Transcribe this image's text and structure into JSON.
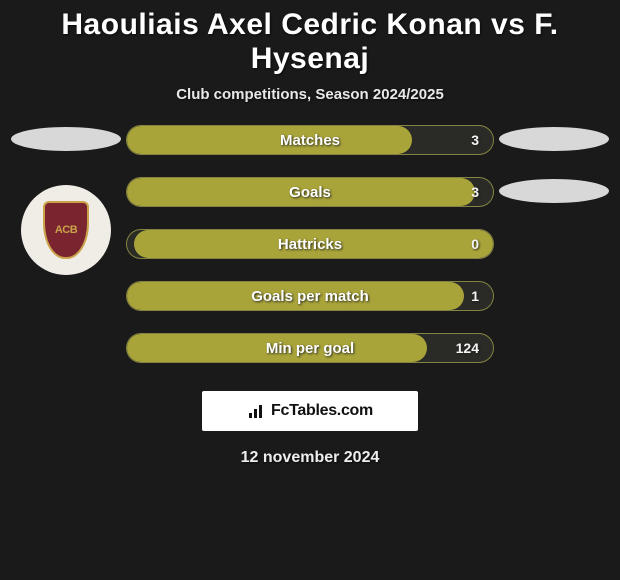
{
  "header": {
    "title": "Haouliais Axel Cedric Konan vs F. Hysenaj",
    "subtitle": "Club competitions, Season 2024/2025"
  },
  "players": {
    "left": {
      "flag_color": "#d8d8d8",
      "club_badge": {
        "bg": "#f0ede6",
        "shield_fill": "#7a2430",
        "shield_border": "#c9a24a",
        "text": "ACB",
        "text_color": "#c9a24a"
      }
    },
    "right": {
      "flag_color": "#d8d8d8",
      "flag2_color": "#d8d8d8"
    }
  },
  "stats": {
    "bar_fill_color": "#a9a43a",
    "bar_bg_color": "#2a2a26",
    "bar_border_color": "rgba(170,170,80,0.7)",
    "label_color": "#ffffff",
    "value_color": "#f4f4f4",
    "label_fontsize": 15,
    "value_fontsize": 14,
    "rows": [
      {
        "label": "Matches",
        "value": "3",
        "fill_side": "left",
        "fill_pct": 78
      },
      {
        "label": "Goals",
        "value": "3",
        "fill_side": "left",
        "fill_pct": 95
      },
      {
        "label": "Hattricks",
        "value": "0",
        "fill_side": "right",
        "fill_pct": 98
      },
      {
        "label": "Goals per match",
        "value": "1",
        "fill_side": "left",
        "fill_pct": 92
      },
      {
        "label": "Min per goal",
        "value": "124",
        "fill_side": "left",
        "fill_pct": 82
      }
    ]
  },
  "brand": {
    "text": "FcTables.com",
    "bg": "#ffffff",
    "text_color": "#111111"
  },
  "footer": {
    "date": "12 november 2024"
  },
  "theme": {
    "page_bg": "#1a1a1a",
    "text_color": "#ffffff"
  }
}
